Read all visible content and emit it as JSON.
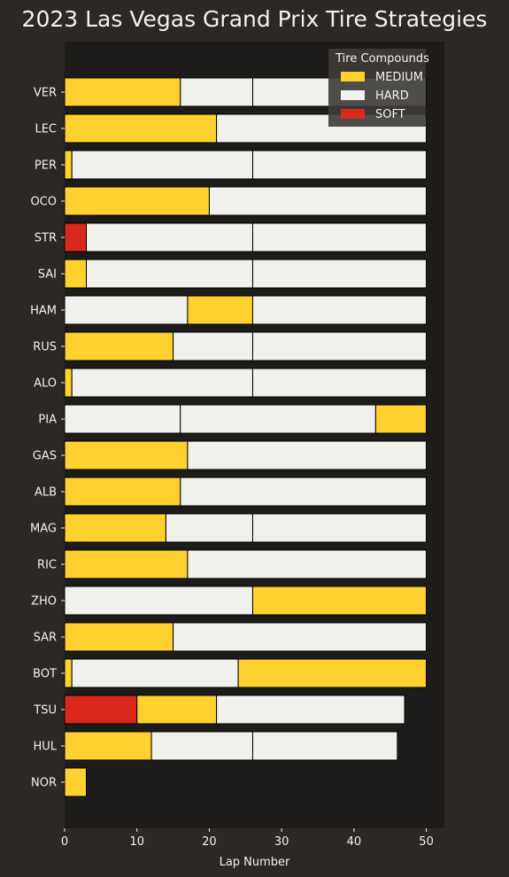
{
  "chart_data": {
    "type": "bar",
    "orientation": "horizontal-stacked",
    "title": "2023 Las Vegas Grand Prix Tire Strategies",
    "xlabel": "Lap Number",
    "ylabel": "",
    "xlim": [
      0,
      52.5
    ],
    "xticks": [
      0,
      10,
      20,
      30,
      40,
      50
    ],
    "grid": false,
    "legend": {
      "title": "Tire Compounds",
      "placement": "top-right",
      "entries": [
        "MEDIUM",
        "HARD",
        "SOFT"
      ]
    },
    "colors": {
      "MEDIUM": "#ffd12e",
      "HARD": "#f0f0ec",
      "SOFT": "#da291c",
      "figure_bg": "#2b2826",
      "axes_bg": "#1e1c1a",
      "edge": "#000000",
      "text": "#f2f2f2"
    },
    "drivers": [
      {
        "name": "VER",
        "stints": [
          {
            "compound": "MEDIUM",
            "start": 0,
            "end": 16
          },
          {
            "compound": "HARD",
            "start": 16,
            "end": 26
          },
          {
            "compound": "HARD",
            "start": 26,
            "end": 50
          }
        ]
      },
      {
        "name": "LEC",
        "stints": [
          {
            "compound": "MEDIUM",
            "start": 0,
            "end": 21
          },
          {
            "compound": "HARD",
            "start": 21,
            "end": 50
          }
        ]
      },
      {
        "name": "PER",
        "stints": [
          {
            "compound": "MEDIUM",
            "start": 0,
            "end": 1
          },
          {
            "compound": "HARD",
            "start": 1,
            "end": 26
          },
          {
            "compound": "HARD",
            "start": 26,
            "end": 50
          }
        ]
      },
      {
        "name": "OCO",
        "stints": [
          {
            "compound": "MEDIUM",
            "start": 0,
            "end": 20
          },
          {
            "compound": "HARD",
            "start": 20,
            "end": 50
          }
        ]
      },
      {
        "name": "STR",
        "stints": [
          {
            "compound": "SOFT",
            "start": 0,
            "end": 3
          },
          {
            "compound": "HARD",
            "start": 3,
            "end": 26
          },
          {
            "compound": "HARD",
            "start": 26,
            "end": 50
          }
        ]
      },
      {
        "name": "SAI",
        "stints": [
          {
            "compound": "MEDIUM",
            "start": 0,
            "end": 3
          },
          {
            "compound": "HARD",
            "start": 3,
            "end": 26
          },
          {
            "compound": "HARD",
            "start": 26,
            "end": 50
          }
        ]
      },
      {
        "name": "HAM",
        "stints": [
          {
            "compound": "HARD",
            "start": 0,
            "end": 17
          },
          {
            "compound": "MEDIUM",
            "start": 17,
            "end": 26
          },
          {
            "compound": "HARD",
            "start": 26,
            "end": 50
          }
        ]
      },
      {
        "name": "RUS",
        "stints": [
          {
            "compound": "MEDIUM",
            "start": 0,
            "end": 15
          },
          {
            "compound": "HARD",
            "start": 15,
            "end": 26
          },
          {
            "compound": "HARD",
            "start": 26,
            "end": 50
          }
        ]
      },
      {
        "name": "ALO",
        "stints": [
          {
            "compound": "MEDIUM",
            "start": 0,
            "end": 1
          },
          {
            "compound": "HARD",
            "start": 1,
            "end": 26
          },
          {
            "compound": "HARD",
            "start": 26,
            "end": 50
          }
        ]
      },
      {
        "name": "PIA",
        "stints": [
          {
            "compound": "HARD",
            "start": 0,
            "end": 16
          },
          {
            "compound": "HARD",
            "start": 16,
            "end": 43
          },
          {
            "compound": "MEDIUM",
            "start": 43,
            "end": 50
          }
        ]
      },
      {
        "name": "GAS",
        "stints": [
          {
            "compound": "MEDIUM",
            "start": 0,
            "end": 17
          },
          {
            "compound": "HARD",
            "start": 17,
            "end": 50
          }
        ]
      },
      {
        "name": "ALB",
        "stints": [
          {
            "compound": "MEDIUM",
            "start": 0,
            "end": 16
          },
          {
            "compound": "HARD",
            "start": 16,
            "end": 50
          }
        ]
      },
      {
        "name": "MAG",
        "stints": [
          {
            "compound": "MEDIUM",
            "start": 0,
            "end": 14
          },
          {
            "compound": "HARD",
            "start": 14,
            "end": 26
          },
          {
            "compound": "HARD",
            "start": 26,
            "end": 50
          }
        ]
      },
      {
        "name": "RIC",
        "stints": [
          {
            "compound": "MEDIUM",
            "start": 0,
            "end": 17
          },
          {
            "compound": "HARD",
            "start": 17,
            "end": 50
          }
        ]
      },
      {
        "name": "ZHO",
        "stints": [
          {
            "compound": "HARD",
            "start": 0,
            "end": 26
          },
          {
            "compound": "MEDIUM",
            "start": 26,
            "end": 50
          }
        ]
      },
      {
        "name": "SAR",
        "stints": [
          {
            "compound": "MEDIUM",
            "start": 0,
            "end": 15
          },
          {
            "compound": "HARD",
            "start": 15,
            "end": 50
          }
        ]
      },
      {
        "name": "BOT",
        "stints": [
          {
            "compound": "MEDIUM",
            "start": 0,
            "end": 1
          },
          {
            "compound": "HARD",
            "start": 1,
            "end": 24
          },
          {
            "compound": "MEDIUM",
            "start": 24,
            "end": 50
          }
        ]
      },
      {
        "name": "TSU",
        "stints": [
          {
            "compound": "SOFT",
            "start": 0,
            "end": 10
          },
          {
            "compound": "MEDIUM",
            "start": 10,
            "end": 21
          },
          {
            "compound": "HARD",
            "start": 21,
            "end": 47
          }
        ]
      },
      {
        "name": "HUL",
        "stints": [
          {
            "compound": "MEDIUM",
            "start": 0,
            "end": 12
          },
          {
            "compound": "HARD",
            "start": 12,
            "end": 26
          },
          {
            "compound": "HARD",
            "start": 26,
            "end": 46
          }
        ]
      },
      {
        "name": "NOR",
        "stints": [
          {
            "compound": "MEDIUM",
            "start": 0,
            "end": 3
          }
        ]
      }
    ]
  }
}
